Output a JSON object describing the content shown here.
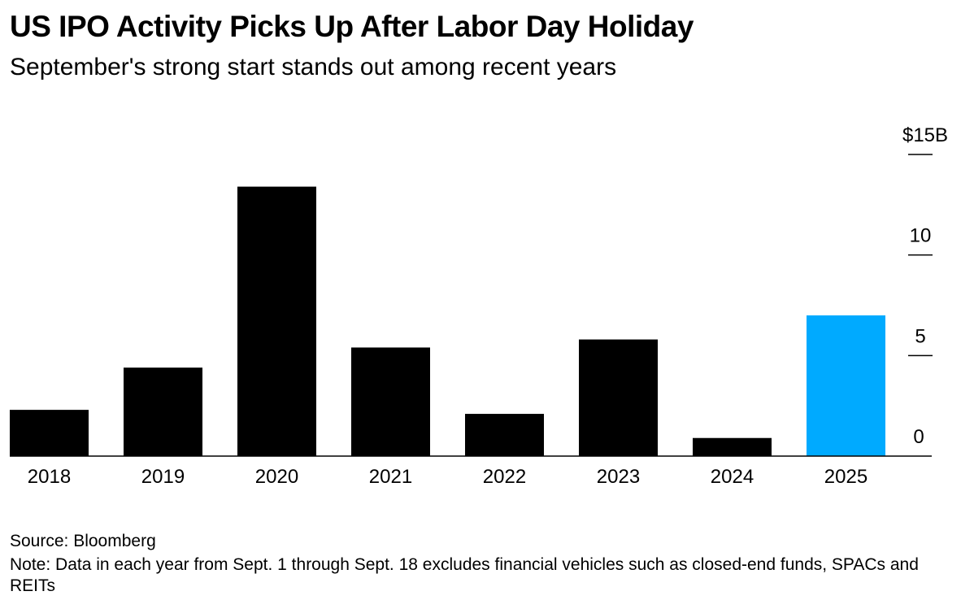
{
  "header": {
    "title": "US IPO Activity Picks Up After Labor Day Holiday",
    "subtitle": "September's strong start stands out among recent years"
  },
  "footer": {
    "source": "Source: Bloomberg",
    "note": "Note: Data in each year from Sept. 1 through Sept. 18 excludes financial vehicles such as closed-end funds, SPACs and REITs"
  },
  "colors": {
    "bar": "#000000",
    "highlight": "#00aaff"
  },
  "chart_data": {
    "type": "bar",
    "title": "US IPO Activity Picks Up After Labor Day Holiday",
    "subtitle": "September's strong start stands out among recent years",
    "categories": [
      "2018",
      "2019",
      "2020",
      "2021",
      "2022",
      "2023",
      "2024",
      "2025"
    ],
    "values": [
      2.3,
      4.4,
      13.4,
      5.4,
      2.1,
      5.8,
      0.9,
      7.0
    ],
    "highlight_index": 7,
    "ylim": [
      0,
      15
    ],
    "yticks": [
      0,
      5,
      10,
      15
    ],
    "ytick_labels": [
      "0",
      "5",
      "10",
      "$15B"
    ],
    "y_axis_side": "right",
    "grid": false
  }
}
